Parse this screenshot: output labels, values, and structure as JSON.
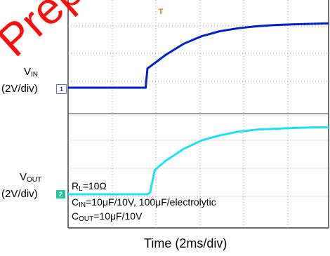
{
  "chart_data": {
    "type": "line",
    "title": "",
    "xlabel": "Time (2ms/div)",
    "x_unit_per_div": 2,
    "y_unit_per_div": 2,
    "grid": true,
    "series": [
      {
        "name": "VIN",
        "label_main": "V",
        "label_sub": "IN",
        "scale": "(2V/div)",
        "channel": "1",
        "color": "#0020c8",
        "x_ms": [
          -10,
          -0.1,
          0,
          0.4,
          1,
          2,
          3,
          4,
          5,
          6,
          7,
          8,
          9,
          10
        ],
        "y_div": [
          0,
          0,
          0.78,
          1.0,
          1.33,
          1.79,
          2.1,
          2.3,
          2.42,
          2.5,
          2.55,
          2.58,
          2.6,
          2.62
        ]
      },
      {
        "name": "VOUT",
        "label_main": "V",
        "label_sub": "OUT",
        "scale": "(2V/div)",
        "channel": "2",
        "color": "#20e0f0",
        "x_ms": [
          -10,
          0,
          0.15,
          0.4,
          1,
          2,
          3,
          4,
          5,
          6,
          7,
          8,
          9,
          10
        ],
        "y_div": [
          0,
          0,
          0.08,
          0.98,
          1.36,
          1.85,
          2.2,
          2.4,
          2.55,
          2.63,
          2.67,
          2.7,
          2.72,
          2.73
        ]
      }
    ]
  },
  "annotations": {
    "rl": "RL=10Ω",
    "rl_main": "R",
    "rl_sub": "L",
    "rl_rest": "=10Ω",
    "cin_main": "C",
    "cin_sub": "IN",
    "cin_rest": "=10μF/10V, 100μF/electrolytic",
    "cout_main": "C",
    "cout_sub": "OUT",
    "cout_rest": "=10μF/10V",
    "trigger_label": "T"
  },
  "watermark": "Prepared"
}
